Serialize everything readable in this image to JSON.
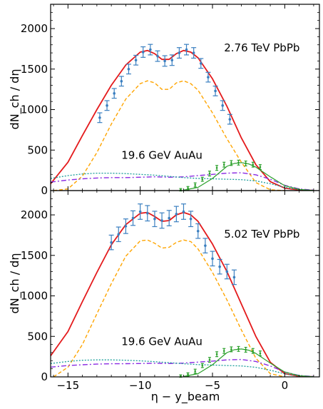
{
  "figure": {
    "xlabel": "η − y_beam",
    "ylabel": "dN_ch / dη"
  },
  "colors": {
    "red": "#e41a1c",
    "orange": "#ffa500",
    "data_blue": "#3a7fc0",
    "data_green": "#2ca02c",
    "purple": "#8a2be2",
    "teal": "#1a9e9a"
  },
  "chart_data": [
    {
      "type": "line",
      "panel": "top",
      "annotation_main": "2.76 TeV PbPb",
      "annotation_secondary": "19.6 GeV AuAu",
      "xlim": [
        -16.2,
        2.4
      ],
      "ylim": [
        0,
        2300
      ],
      "xticks": [
        -15,
        -10,
        -5,
        0
      ],
      "xtick_labels": [
        "",
        "",
        "",
        ""
      ],
      "yticks": [
        0,
        500,
        1000,
        1500,
        2000
      ],
      "ytick_labels": [
        "0",
        "500",
        "1000",
        "1500",
        "2000"
      ],
      "series": [
        {
          "style": "red-solid",
          "x": [
            -16.2,
            -15,
            -14,
            -13,
            -12,
            -11,
            -10,
            -9.5,
            -9,
            -8.5,
            -8,
            -7.5,
            -7,
            -6.5,
            -6,
            -5,
            -4,
            -3,
            -2,
            -1,
            0,
            1,
            2
          ],
          "y": [
            85,
            350,
            680,
            1000,
            1300,
            1550,
            1710,
            1730,
            1690,
            1620,
            1620,
            1690,
            1730,
            1710,
            1640,
            1380,
            1040,
            650,
            320,
            110,
            30,
            8,
            2
          ]
        },
        {
          "style": "orange-dashed",
          "x": [
            -16,
            -15,
            -14,
            -13,
            -12,
            -11,
            -10,
            -9.5,
            -9,
            -8.5,
            -8,
            -7.5,
            -7,
            -6.5,
            -6,
            -5,
            -4,
            -3,
            -2,
            -1,
            0
          ],
          "y": [
            0,
            20,
            180,
            470,
            820,
            1130,
            1320,
            1355,
            1330,
            1250,
            1250,
            1330,
            1355,
            1320,
            1240,
            960,
            640,
            350,
            100,
            10,
            0
          ]
        },
        {
          "style": "purple-dashdot",
          "x": [
            -16.2,
            -15,
            -14,
            -13,
            -12,
            -11,
            -10,
            -9,
            -8,
            -7,
            -6,
            -5,
            -4,
            -3,
            -2,
            -1,
            0,
            1,
            2
          ],
          "y": [
            105,
            130,
            145,
            155,
            160,
            160,
            165,
            170,
            165,
            170,
            185,
            200,
            215,
            220,
            195,
            140,
            65,
            20,
            5
          ]
        },
        {
          "style": "teal-dotted",
          "x": [
            -16.2,
            -15,
            -14,
            -13,
            -12,
            -11,
            -10,
            -9,
            -8,
            -7,
            -6,
            -5,
            -4,
            -3,
            -2,
            -1,
            0,
            1,
            2
          ],
          "y": [
            150,
            185,
            205,
            215,
            215,
            210,
            200,
            190,
            175,
            160,
            150,
            145,
            140,
            135,
            120,
            85,
            40,
            12,
            3
          ]
        },
        {
          "style": "green-solid",
          "x": [
            -7,
            -6,
            -5,
            -4,
            -3.5,
            -3,
            -2.5,
            -2,
            -1,
            0,
            1,
            2
          ],
          "y": [
            5,
            40,
            150,
            300,
            335,
            345,
            330,
            290,
            170,
            60,
            15,
            2
          ]
        }
      ],
      "data_points": [
        {
          "name": "2.76 TeV PbPb",
          "style": "blue-errorbar",
          "x": [
            -12.8,
            -12.3,
            -11.8,
            -11.3,
            -10.8,
            -10.3,
            -9.8,
            -9.3,
            -8.8,
            -8.3,
            -7.8,
            -7.3,
            -6.8,
            -6.3,
            -5.8,
            -5.3,
            -4.8,
            -4.3,
            -3.8
          ],
          "y": [
            900,
            1050,
            1200,
            1350,
            1500,
            1610,
            1710,
            1740,
            1660,
            1600,
            1610,
            1700,
            1740,
            1700,
            1570,
            1400,
            1230,
            1050,
            880
          ],
          "yerr": [
            60,
            60,
            60,
            60,
            60,
            60,
            65,
            65,
            65,
            65,
            65,
            65,
            65,
            65,
            60,
            60,
            60,
            60,
            60
          ]
        },
        {
          "name": "19.6 GeV AuAu",
          "style": "green-errorbar",
          "x": [
            -7.2,
            -6.7,
            -6.2,
            -5.7,
            -5.2,
            -4.7,
            -4.2,
            -3.7,
            -3.2,
            -2.7,
            -2.2,
            -1.7
          ],
          "y": [
            10,
            30,
            70,
            140,
            210,
            280,
            320,
            340,
            345,
            335,
            320,
            290
          ],
          "yerr": [
            15,
            20,
            25,
            25,
            30,
            30,
            30,
            30,
            30,
            30,
            30,
            30
          ]
        }
      ]
    },
    {
      "type": "line",
      "panel": "bottom",
      "annotation_main": "5.02 TeV PbPb",
      "annotation_secondary": "19.6 GeV AuAu",
      "xlim": [
        -16.2,
        2.4
      ],
      "ylim": [
        0,
        2300
      ],
      "xticks": [
        -15,
        -10,
        -5,
        0
      ],
      "xtick_labels": [
        "−15",
        "−10",
        "−5",
        "0"
      ],
      "yticks": [
        0,
        500,
        1000,
        1500,
        2000
      ],
      "ytick_labels": [
        "0",
        "500",
        "1000",
        "1500",
        "2000"
      ],
      "series": [
        {
          "style": "red-solid",
          "x": [
            -16.2,
            -15,
            -14,
            -13,
            -12,
            -11,
            -10,
            -9.5,
            -9,
            -8.5,
            -8,
            -7.5,
            -7,
            -6.5,
            -6,
            -5,
            -4,
            -3,
            -2,
            -1,
            0,
            1,
            2
          ],
          "y": [
            260,
            560,
            930,
            1290,
            1630,
            1880,
            2020,
            2030,
            1980,
            1920,
            1930,
            2000,
            2030,
            2000,
            1920,
            1640,
            1300,
            900,
            500,
            180,
            40,
            8,
            2
          ]
        },
        {
          "style": "orange-dashed",
          "x": [
            -16,
            -15,
            -14,
            -13,
            -12,
            -11,
            -10,
            -9.5,
            -9,
            -8.5,
            -8,
            -7.5,
            -7,
            -6.5,
            -6,
            -5,
            -4,
            -3,
            -2,
            -1,
            0
          ],
          "y": [
            0,
            120,
            400,
            780,
            1150,
            1490,
            1680,
            1690,
            1650,
            1590,
            1600,
            1660,
            1690,
            1670,
            1580,
            1290,
            950,
            580,
            230,
            40,
            0
          ]
        },
        {
          "style": "purple-dashdot",
          "x": [
            -16.2,
            -15,
            -14,
            -13,
            -12,
            -11,
            -10,
            -9,
            -8,
            -7,
            -6,
            -5,
            -4,
            -3,
            -2,
            -1,
            0,
            1,
            2
          ],
          "y": [
            120,
            140,
            150,
            158,
            162,
            163,
            165,
            168,
            165,
            170,
            182,
            195,
            210,
            215,
            190,
            135,
            60,
            18,
            4
          ]
        },
        {
          "style": "teal-dotted",
          "x": [
            -16.2,
            -15,
            -14,
            -13,
            -12,
            -11,
            -10,
            -9,
            -8,
            -7,
            -6,
            -5,
            -4,
            -3,
            -2,
            -1,
            0,
            1,
            2
          ],
          "y": [
            165,
            190,
            205,
            210,
            210,
            205,
            198,
            188,
            175,
            162,
            152,
            146,
            140,
            135,
            118,
            82,
            38,
            12,
            3
          ]
        },
        {
          "style": "green-solid",
          "x": [
            -7,
            -6,
            -5,
            -4,
            -3.5,
            -3,
            -2.5,
            -2,
            -1,
            0,
            1,
            2
          ],
          "y": [
            5,
            40,
            150,
            300,
            335,
            345,
            330,
            290,
            170,
            60,
            15,
            2
          ]
        }
      ],
      "data_points": [
        {
          "name": "5.02 TeV PbPb",
          "style": "blue-errorbar",
          "x": [
            -12,
            -11.5,
            -11,
            -10.5,
            -10,
            -9.5,
            -9,
            -8.5,
            -8,
            -7.5,
            -7,
            -6.5,
            -6,
            -5.5,
            -5,
            -4.5,
            -4,
            -3.5
          ],
          "y": [
            1660,
            1760,
            1860,
            1960,
            2040,
            2020,
            1950,
            1930,
            1960,
            2010,
            2040,
            1950,
            1800,
            1620,
            1460,
            1360,
            1300,
            1230
          ],
          "yerr": [
            90,
            90,
            90,
            90,
            95,
            95,
            95,
            95,
            95,
            95,
            95,
            95,
            90,
            90,
            90,
            90,
            90,
            90
          ]
        },
        {
          "name": "19.6 GeV AuAu",
          "style": "green-errorbar",
          "x": [
            -7.2,
            -6.7,
            -6.2,
            -5.7,
            -5.2,
            -4.7,
            -4.2,
            -3.7,
            -3.2,
            -2.7,
            -2.2,
            -1.7
          ],
          "y": [
            10,
            30,
            70,
            140,
            210,
            280,
            320,
            340,
            345,
            335,
            320,
            290
          ],
          "yerr": [
            15,
            20,
            25,
            25,
            30,
            30,
            30,
            30,
            30,
            30,
            30,
            30
          ]
        }
      ]
    }
  ]
}
